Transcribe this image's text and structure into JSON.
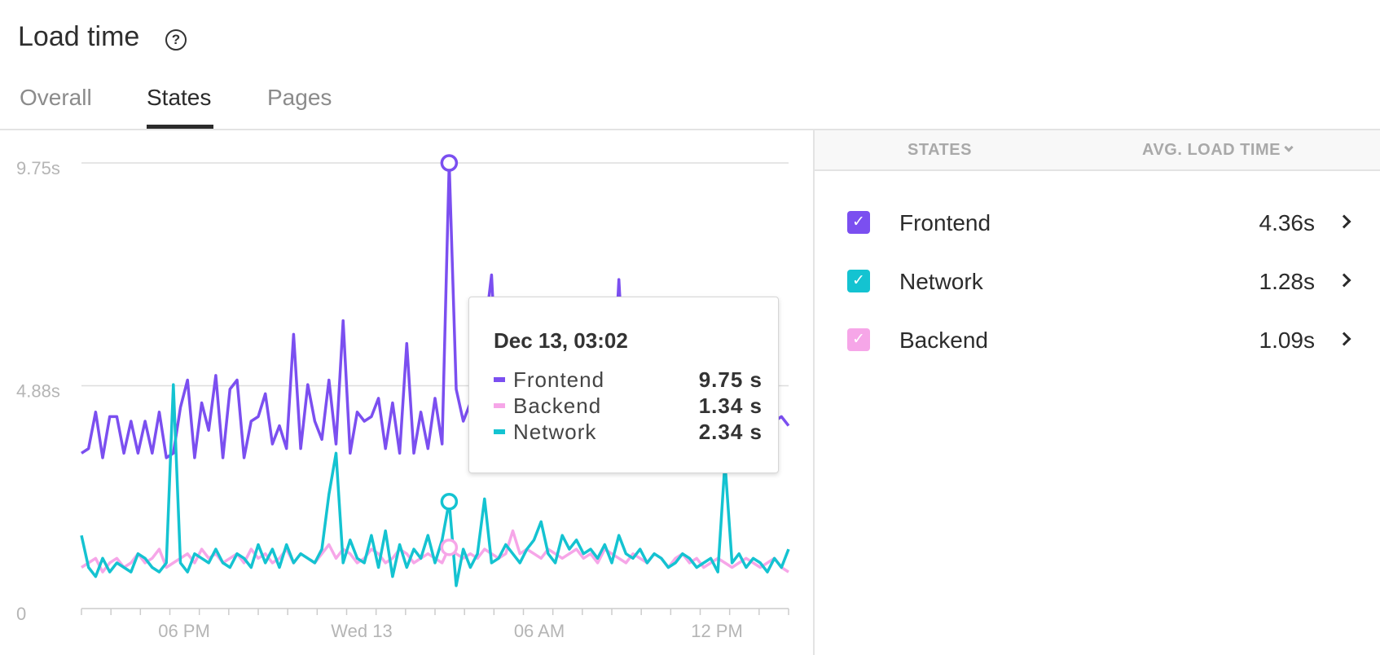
{
  "header": {
    "title": "Load time"
  },
  "tabs": [
    {
      "label": "Overall",
      "active": false
    },
    {
      "label": "States",
      "active": true
    },
    {
      "label": "Pages",
      "active": false
    }
  ],
  "colors": {
    "frontend": "#7b4ff0",
    "network": "#14c3d1",
    "backend": "#f6a6e8",
    "grid": "#dddddd",
    "axis_text": "#b5b5b5"
  },
  "icons": {
    "help": "help-circle-icon",
    "sort": "chevron-down-icon",
    "row_arrow": "chevron-right-icon",
    "check": "checkmark-icon"
  },
  "side_panel": {
    "col_states": "STATES",
    "col_avg": "AVG. LOAD TIME",
    "rows": [
      {
        "name": "Frontend",
        "value": "4.36s",
        "color": "#7b4ff0",
        "checked": true
      },
      {
        "name": "Network",
        "value": "1.28s",
        "color": "#14c3d1",
        "checked": true
      },
      {
        "name": "Backend",
        "value": "1.09s",
        "color": "#f6a6e8",
        "checked": true
      }
    ]
  },
  "tooltip": {
    "title": "Dec 13, 03:02",
    "rows": [
      {
        "name": "Frontend",
        "value": "9.75 s",
        "color": "#7b4ff0"
      },
      {
        "name": "Backend",
        "value": "1.34 s",
        "color": "#f6a6e8"
      },
      {
        "name": "Network",
        "value": "2.34 s",
        "color": "#14c3d1"
      }
    ]
  },
  "chart_data": {
    "type": "line",
    "title": "",
    "y_ticks": [
      "9.75s",
      "4.88s",
      "0"
    ],
    "ylim": [
      0,
      9.75
    ],
    "x_tick_labels": [
      "06 PM",
      "Wed 13",
      "06 AM",
      "12 PM"
    ],
    "n_points": 101,
    "highlight_index": 52,
    "series": [
      {
        "name": "Frontend",
        "color": "#7b4ff0",
        "values": [
          3.4,
          3.5,
          4.3,
          3.3,
          4.2,
          4.2,
          3.4,
          4.1,
          3.4,
          4.1,
          3.4,
          4.3,
          3.3,
          3.4,
          4.4,
          5.0,
          3.3,
          4.5,
          3.9,
          5.1,
          3.3,
          4.8,
          5.0,
          3.3,
          4.1,
          4.2,
          4.7,
          3.6,
          4.0,
          3.5,
          6.0,
          3.5,
          4.9,
          4.1,
          3.7,
          5.0,
          3.6,
          6.3,
          3.4,
          4.3,
          4.1,
          4.2,
          4.6,
          3.5,
          4.5,
          3.4,
          5.8,
          3.4,
          4.3,
          3.5,
          4.6,
          3.6,
          9.75,
          4.8,
          4.1,
          4.5,
          3.9,
          6.0,
          7.3,
          4.2,
          3.9,
          4.3,
          4.1,
          4.5,
          4.2,
          4.8,
          4.0,
          4.3,
          4.4,
          4.1,
          4.0,
          4.2,
          4.3,
          4.5,
          4.0,
          4.2,
          7.2,
          4.3,
          4.1,
          4.4,
          4.0,
          3.9,
          4.2,
          4.1,
          4.3,
          4.0,
          4.2,
          3.9,
          4.1,
          4.3,
          3.2,
          4.0,
          4.1,
          3.9,
          4.2,
          3.9,
          4.1,
          4.0,
          4.1,
          4.2,
          4.0
        ]
      },
      {
        "name": "Backend",
        "color": "#f6a6e8",
        "values": [
          0.9,
          1.0,
          1.1,
          0.8,
          1.0,
          1.1,
          0.9,
          1.0,
          1.2,
          1.0,
          1.1,
          1.3,
          0.9,
          1.0,
          1.1,
          1.2,
          1.0,
          1.3,
          1.1,
          1.2,
          1.0,
          1.1,
          1.2,
          1.0,
          1.3,
          1.1,
          1.2,
          1.0,
          1.1,
          1.3,
          1.0,
          1.2,
          1.1,
          1.0,
          1.2,
          1.4,
          1.1,
          1.3,
          1.2,
          1.0,
          1.1,
          1.3,
          1.2,
          1.0,
          1.1,
          1.3,
          1.2,
          1.0,
          1.1,
          1.2,
          1.1,
          1.0,
          1.34,
          1.2,
          1.1,
          1.2,
          1.1,
          1.3,
          1.2,
          1.1,
          1.2,
          1.7,
          1.2,
          1.3,
          1.2,
          1.1,
          1.3,
          1.2,
          1.1,
          1.2,
          1.3,
          1.1,
          1.2,
          1.0,
          1.3,
          1.2,
          1.1,
          1.0,
          1.2,
          1.1,
          1.0,
          1.2,
          1.1,
          0.9,
          1.1,
          1.2,
          1.0,
          1.1,
          0.9,
          1.0,
          1.1,
          1.0,
          0.9,
          1.0,
          1.1,
          1.0,
          0.9,
          1.0,
          1.1,
          0.9,
          0.8
        ]
      },
      {
        "name": "Network",
        "color": "#14c3d1",
        "values": [
          1.6,
          0.9,
          0.7,
          1.1,
          0.8,
          1.0,
          0.9,
          0.8,
          1.2,
          1.1,
          0.9,
          0.8,
          1.0,
          4.9,
          1.0,
          0.8,
          1.2,
          1.1,
          1.0,
          1.3,
          1.0,
          0.9,
          1.2,
          1.1,
          0.9,
          1.4,
          1.0,
          1.3,
          0.9,
          1.4,
          1.0,
          1.2,
          1.1,
          1.0,
          1.3,
          2.5,
          3.4,
          1.0,
          1.5,
          1.1,
          1.0,
          1.6,
          0.9,
          1.7,
          0.7,
          1.4,
          0.9,
          1.3,
          1.1,
          1.6,
          1.0,
          1.5,
          2.34,
          0.5,
          1.3,
          0.9,
          1.2,
          2.4,
          1.0,
          1.1,
          1.4,
          1.2,
          1.0,
          1.3,
          1.5,
          1.9,
          1.2,
          1.0,
          1.6,
          1.3,
          1.5,
          1.2,
          1.3,
          1.1,
          1.4,
          1.0,
          1.6,
          1.2,
          1.1,
          1.3,
          1.0,
          1.2,
          1.1,
          0.9,
          1.0,
          1.2,
          1.1,
          0.9,
          1.0,
          1.1,
          0.8,
          3.2,
          1.0,
          1.2,
          0.9,
          1.1,
          1.0,
          0.8,
          1.1,
          0.9,
          1.3
        ]
      }
    ]
  }
}
